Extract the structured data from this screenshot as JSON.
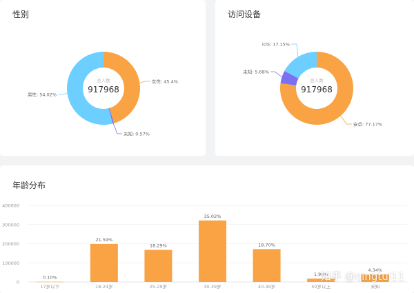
{
  "colors": {
    "orange": "#f9a344",
    "blue": "#6ccfff",
    "purple": "#7b6ff2",
    "axis": "#999999",
    "grid": "#e8e8e8",
    "leader": "#aaaaaa"
  },
  "watermark": "知乎 @qingtui11",
  "chart_data": [
    {
      "type": "pie",
      "title": "性别",
      "center_label": "总人数",
      "center_value": "917968",
      "slices": [
        {
          "name": "女性",
          "label": "女性: 45.4%",
          "value": 45.4,
          "color": "#f9a344"
        },
        {
          "name": "未知",
          "label": "未知: 0.57%",
          "value": 0.57,
          "color": "#7b6ff2"
        },
        {
          "name": "男性",
          "label": "男性: 54.02%",
          "value": 54.02,
          "color": "#6ccfff"
        }
      ]
    },
    {
      "type": "pie",
      "title": "访问设备",
      "center_label": "总人数",
      "center_value": "917968",
      "slices": [
        {
          "name": "安卓",
          "label": "安卓: 77.17%",
          "value": 77.17,
          "color": "#f9a344"
        },
        {
          "name": "未知",
          "label": "未知: 5.68%",
          "value": 5.68,
          "color": "#7b6ff2"
        },
        {
          "name": "iOS",
          "label": "iOS: 17.15%",
          "value": 17.15,
          "color": "#6ccfff"
        }
      ]
    },
    {
      "type": "bar",
      "title": "年龄分布",
      "categories": [
        "17岁以下",
        "18-24岁",
        "25-29岁",
        "30-39岁",
        "40-49岁",
        "50岁以上",
        "未知"
      ],
      "values": [
        918,
        198184,
        167899,
        321473,
        171660,
        17440,
        39840
      ],
      "data_labels": [
        "0.10%",
        "21.59%",
        "18.29%",
        "35.02%",
        "18.70%",
        "1.90%",
        "4.34%"
      ],
      "yticks": [
        0,
        100000,
        200000,
        300000,
        400000
      ],
      "ylim": [
        0,
        400000
      ],
      "grid": true
    }
  ]
}
